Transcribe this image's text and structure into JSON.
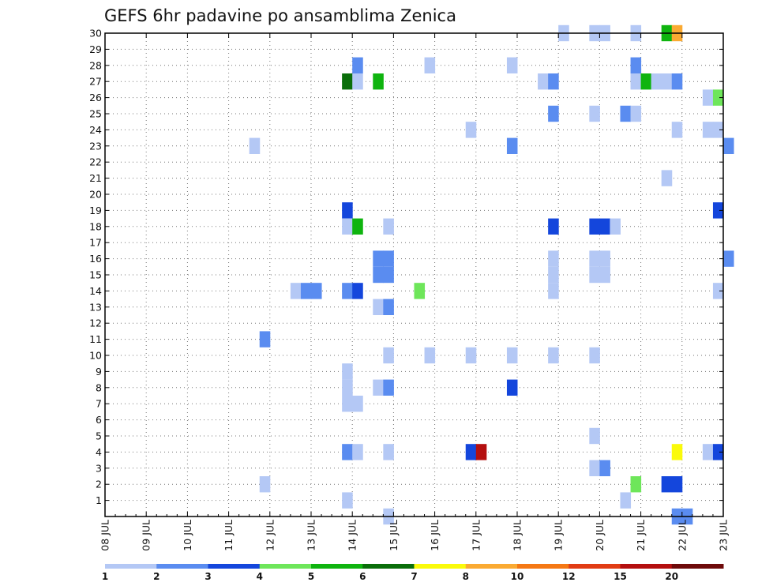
{
  "chart_data": {
    "type": "heatmap",
    "title": "GEFS 6hr padavine po ansamblima Zenica",
    "xlabel": "",
    "ylabel": "",
    "x_ticks": [
      "08 JUL",
      "09 JUL",
      "10 JUL",
      "11 JUL",
      "12 JUL",
      "13 JUL",
      "14 JUL",
      "15 JUL",
      "16 JUL",
      "17 JUL",
      "18 JUL",
      "19 JUL",
      "20 JUL",
      "21 JUL",
      "22 JUL",
      "23 JUL"
    ],
    "y_ticks": [
      "1",
      "2",
      "3",
      "4",
      "5",
      "6",
      "7",
      "8",
      "9",
      "10",
      "11",
      "12",
      "13",
      "14",
      "15",
      "16",
      "17",
      "18",
      "19",
      "20",
      "21",
      "22",
      "23",
      "24",
      "25",
      "26",
      "27",
      "28",
      "29",
      "30"
    ],
    "x_range_days": [
      0,
      15
    ],
    "y_range": [
      0,
      30
    ],
    "grid": true,
    "step_hours": 6,
    "legend": {
      "position": "bottom",
      "labels": [
        "1",
        "2",
        "3",
        "4",
        "5",
        "6",
        "7",
        "8",
        "10",
        "12",
        "15",
        "20"
      ],
      "colors": [
        "#b4c8f5",
        "#5a8cf0",
        "#1446dc",
        "#6ee65a",
        "#0fb40f",
        "#0a6e0a",
        "#fafa0a",
        "#faaa32",
        "#f57814",
        "#e13c14",
        "#b40f0f",
        "#6e0a0a"
      ]
    },
    "points": [
      [
        30,
        "19 JUL",
        0,
        1
      ],
      [
        30,
        "19 JUL",
        18,
        1
      ],
      [
        30,
        "20 JUL",
        0,
        1
      ],
      [
        30,
        "20 JUL",
        18,
        1
      ],
      [
        30,
        "21 JUL",
        12,
        5
      ],
      [
        30,
        "21 JUL",
        18,
        8
      ],
      [
        28,
        "14 JUL",
        0,
        2
      ],
      [
        28,
        "15 JUL",
        18,
        1
      ],
      [
        28,
        "17 JUL",
        18,
        1
      ],
      [
        28,
        "20 JUL",
        18,
        2
      ],
      [
        27,
        "13 JUL",
        18,
        6
      ],
      [
        27,
        "14 JUL",
        0,
        1
      ],
      [
        27,
        "14 JUL",
        12,
        5
      ],
      [
        27,
        "18 JUL",
        12,
        1
      ],
      [
        27,
        "18 JUL",
        18,
        2
      ],
      [
        27,
        "20 JUL",
        18,
        1
      ],
      [
        27,
        "21 JUL",
        0,
        5
      ],
      [
        27,
        "21 JUL",
        6,
        1
      ],
      [
        27,
        "21 JUL",
        12,
        1
      ],
      [
        27,
        "21 JUL",
        18,
        2
      ],
      [
        26,
        "22 JUL",
        12,
        1
      ],
      [
        26,
        "22 JUL",
        18,
        4
      ],
      [
        25,
        "18 JUL",
        18,
        2
      ],
      [
        25,
        "19 JUL",
        18,
        1
      ],
      [
        25,
        "20 JUL",
        12,
        2
      ],
      [
        25,
        "20 JUL",
        18,
        1
      ],
      [
        24,
        "16 JUL",
        18,
        1
      ],
      [
        24,
        "21 JUL",
        18,
        1
      ],
      [
        24,
        "22 JUL",
        12,
        1
      ],
      [
        24,
        "22 JUL",
        18,
        1
      ],
      [
        23,
        "11 JUL",
        12,
        1
      ],
      [
        23,
        "17 JUL",
        18,
        2
      ],
      [
        23,
        "23 JUL",
        0,
        2
      ],
      [
        21,
        "21 JUL",
        12,
        1
      ],
      [
        19,
        "13 JUL",
        18,
        3
      ],
      [
        19,
        "22 JUL",
        18,
        3
      ],
      [
        18,
        "13 JUL",
        18,
        1
      ],
      [
        18,
        "14 JUL",
        0,
        5
      ],
      [
        18,
        "14 JUL",
        18,
        1
      ],
      [
        18,
        "18 JUL",
        18,
        3
      ],
      [
        18,
        "19 JUL",
        18,
        3
      ],
      [
        18,
        "20 JUL",
        0,
        3
      ],
      [
        18,
        "20 JUL",
        6,
        1
      ],
      [
        16,
        "14 JUL",
        12,
        2
      ],
      [
        16,
        "14 JUL",
        18,
        2
      ],
      [
        16,
        "18 JUL",
        18,
        1
      ],
      [
        16,
        "19 JUL",
        18,
        1
      ],
      [
        16,
        "20 JUL",
        0,
        1
      ],
      [
        16,
        "23 JUL",
        0,
        2
      ],
      [
        15,
        "14 JUL",
        12,
        2
      ],
      [
        15,
        "14 JUL",
        18,
        2
      ],
      [
        15,
        "18 JUL",
        18,
        1
      ],
      [
        15,
        "19 JUL",
        18,
        1
      ],
      [
        15,
        "20 JUL",
        0,
        1
      ],
      [
        14,
        "12 JUL",
        12,
        1
      ],
      [
        14,
        "12 JUL",
        18,
        2
      ],
      [
        14,
        "13 JUL",
        0,
        2
      ],
      [
        14,
        "13 JUL",
        18,
        2
      ],
      [
        14,
        "14 JUL",
        0,
        3
      ],
      [
        14,
        "15 JUL",
        12,
        4
      ],
      [
        14,
        "18 JUL",
        18,
        1
      ],
      [
        14,
        "22 JUL",
        18,
        1
      ],
      [
        13,
        "14 JUL",
        12,
        1
      ],
      [
        13,
        "14 JUL",
        18,
        2
      ],
      [
        11,
        "11 JUL",
        18,
        2
      ],
      [
        10,
        "14 JUL",
        18,
        1
      ],
      [
        10,
        "15 JUL",
        18,
        1
      ],
      [
        10,
        "16 JUL",
        18,
        1
      ],
      [
        10,
        "17 JUL",
        18,
        1
      ],
      [
        10,
        "18 JUL",
        18,
        1
      ],
      [
        10,
        "19 JUL",
        18,
        1
      ],
      [
        9,
        "13 JUL",
        18,
        1
      ],
      [
        8,
        "13 JUL",
        18,
        1
      ],
      [
        8,
        "14 JUL",
        12,
        1
      ],
      [
        8,
        "14 JUL",
        18,
        2
      ],
      [
        8,
        "17 JUL",
        18,
        3
      ],
      [
        7,
        "13 JUL",
        18,
        1
      ],
      [
        7,
        "14 JUL",
        0,
        1
      ],
      [
        5,
        "19 JUL",
        18,
        1
      ],
      [
        4,
        "13 JUL",
        18,
        2
      ],
      [
        4,
        "14 JUL",
        0,
        1
      ],
      [
        4,
        "14 JUL",
        18,
        1
      ],
      [
        4,
        "16 JUL",
        18,
        3
      ],
      [
        4,
        "17 JUL",
        0,
        11
      ],
      [
        4,
        "21 JUL",
        18,
        7
      ],
      [
        4,
        "22 JUL",
        12,
        1
      ],
      [
        4,
        "22 JUL",
        18,
        3
      ],
      [
        3,
        "19 JUL",
        18,
        1
      ],
      [
        3,
        "20 JUL",
        0,
        2
      ],
      [
        2,
        "11 JUL",
        18,
        1
      ],
      [
        2,
        "20 JUL",
        18,
        4
      ],
      [
        2,
        "21 JUL",
        12,
        3
      ],
      [
        2,
        "21 JUL",
        18,
        3
      ],
      [
        1,
        "13 JUL",
        18,
        1
      ],
      [
        1,
        "20 JUL",
        12,
        1
      ],
      [
        0,
        "14 JUL",
        18,
        1
      ],
      [
        0,
        "21 JUL",
        18,
        2
      ],
      [
        0,
        "22 JUL",
        0,
        2
      ]
    ]
  }
}
